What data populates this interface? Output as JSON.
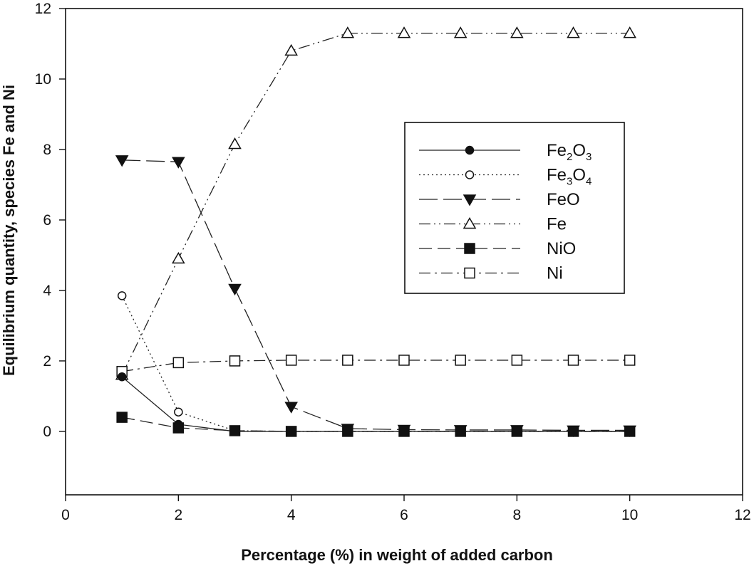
{
  "chart_data": {
    "type": "line",
    "title": "",
    "xlabel": "Percentage (%) in weight of added carbon",
    "ylabel": "Equilibrium quantity, species Fe and Ni",
    "xlim": [
      0,
      12
    ],
    "ylim": [
      -1.8,
      12
    ],
    "xticks": [
      0,
      2,
      4,
      6,
      8,
      10,
      12
    ],
    "yticks": [
      0,
      2,
      4,
      6,
      8,
      10,
      12
    ],
    "grid": false,
    "legend_position": "center-right",
    "x": [
      1,
      2,
      3,
      4,
      5,
      6,
      7,
      8,
      9,
      10
    ],
    "series": [
      {
        "name": "Fe2O3",
        "label_parts": [
          [
            "Fe",
            ""
          ],
          [
            "2",
            "sub"
          ],
          [
            "O",
            ""
          ],
          [
            "3",
            "sub"
          ]
        ],
        "marker": "circle-filled",
        "dash": "none",
        "values": [
          1.55,
          0.2,
          0,
          0,
          0,
          0,
          0,
          0,
          0,
          0
        ]
      },
      {
        "name": "Fe3O4",
        "label_parts": [
          [
            "Fe",
            ""
          ],
          [
            "3",
            "sub"
          ],
          [
            "O",
            ""
          ],
          [
            "4",
            "sub"
          ]
        ],
        "marker": "circle-open",
        "dash": "dotted",
        "values": [
          3.85,
          0.55,
          0.02,
          0,
          0,
          0,
          0,
          0,
          0,
          0
        ]
      },
      {
        "name": "FeO",
        "label_parts": [
          [
            "FeO",
            ""
          ]
        ],
        "marker": "triangle-down-filled",
        "dash": "long-dash",
        "values": [
          7.7,
          7.65,
          4.05,
          0.7,
          0.08,
          0.05,
          0.04,
          0.04,
          0.03,
          0.03
        ]
      },
      {
        "name": "Fe",
        "label_parts": [
          [
            "Fe",
            ""
          ]
        ],
        "marker": "triangle-up-open",
        "dash": "dash-dot-dot",
        "values": [
          1.6,
          4.9,
          8.15,
          10.8,
          11.3,
          11.3,
          11.3,
          11.3,
          11.3,
          11.3
        ]
      },
      {
        "name": "NiO",
        "label_parts": [
          [
            "NiO",
            ""
          ]
        ],
        "marker": "square-filled",
        "dash": "dash",
        "values": [
          0.4,
          0.1,
          0.02,
          0,
          0,
          0,
          0,
          0,
          0,
          0
        ]
      },
      {
        "name": "Ni",
        "label_parts": [
          [
            "Ni",
            ""
          ]
        ],
        "marker": "square-open",
        "dash": "dash-dot",
        "values": [
          1.7,
          1.95,
          2.0,
          2.02,
          2.02,
          2.02,
          2.02,
          2.02,
          2.02,
          2.02
        ]
      }
    ]
  }
}
